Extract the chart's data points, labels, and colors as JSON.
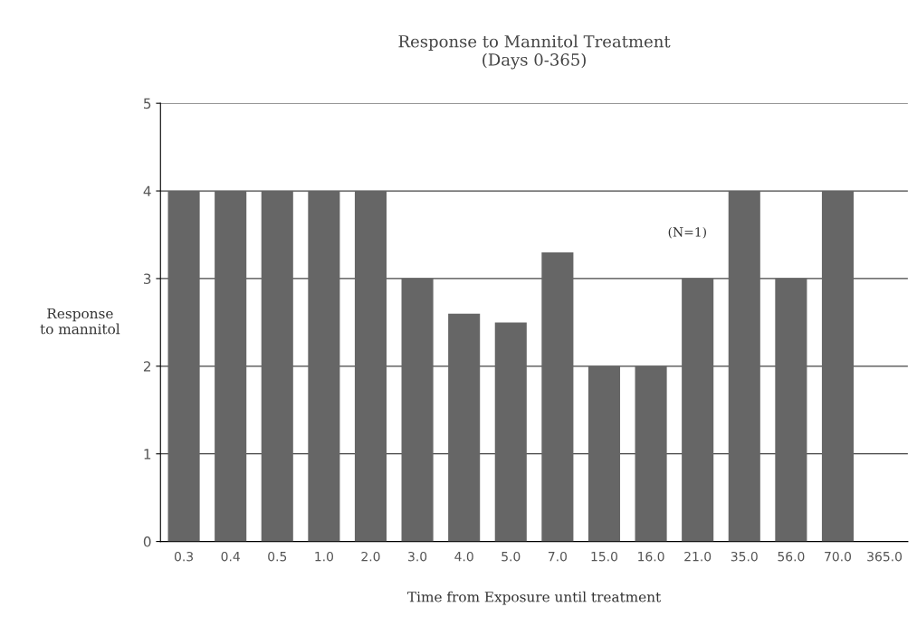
{
  "chart_data": {
    "type": "bar",
    "title": "Response to Mannitol Treatment\n(Days 0-365)",
    "xlabel": "Time from Exposure until treatment",
    "ylabel": "Response\nto mannitol",
    "categories": [
      "0.3",
      "0.4",
      "0.5",
      "1.0",
      "2.0",
      "3.0",
      "4.0",
      "5.0",
      "7.0",
      "15.0",
      "16.0",
      "21.0",
      "35.0",
      "56.0",
      "70.0",
      "365.0"
    ],
    "values": [
      4,
      4,
      4,
      4,
      4,
      3,
      2.6,
      2.5,
      3.3,
      2,
      2,
      3,
      4,
      3,
      4,
      0
    ],
    "color": "#666666",
    "ylim": [
      0,
      5
    ],
    "yticks": [
      0,
      1,
      2,
      3,
      4,
      5
    ],
    "grid": "y",
    "annotations": [
      "(N=1)"
    ]
  }
}
